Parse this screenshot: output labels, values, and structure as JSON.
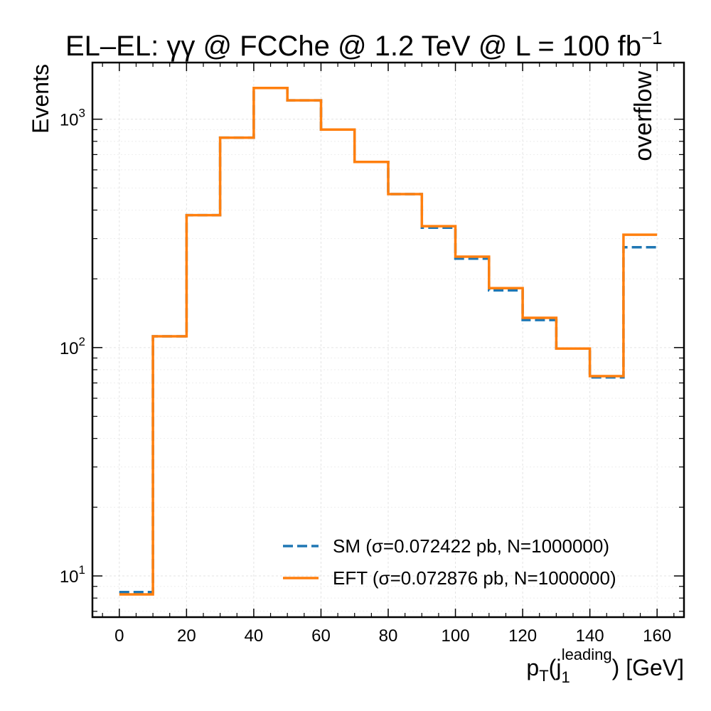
{
  "chart_data": {
    "type": "line",
    "title_main": "EL–EL: γγ @ FCChe @ 1.2 TeV @ L = 100 fb",
    "title_sup": "−1",
    "xlabel_main": "p",
    "xlabel_sub": "T",
    "xlabel_paren_open": "(j",
    "xlabel_j_sub": "1",
    "xlabel_j_sup": "leading",
    "xlabel_tail": ") [GeV]",
    "ylabel": "Events",
    "annotation": "overflow",
    "x_scale": "linear",
    "y_scale": "log",
    "xlim": [
      -8,
      168
    ],
    "ylim": [
      6.6,
      1770
    ],
    "x_ticks": [
      0,
      20,
      40,
      60,
      80,
      100,
      120,
      140,
      160
    ],
    "x_tick_labels": [
      "0",
      "20",
      "40",
      "60",
      "80",
      "100",
      "120",
      "140",
      "160"
    ],
    "y_ticks": [
      10,
      100,
      1000
    ],
    "y_tick_base": "10",
    "y_tick_exps": [
      "1",
      "2",
      "3"
    ],
    "grid": true,
    "legend_position": "lower-right",
    "bin_edges": [
      0,
      10,
      20,
      30,
      40,
      50,
      60,
      70,
      80,
      90,
      100,
      110,
      120,
      130,
      140,
      150,
      160
    ],
    "series": [
      {
        "name": "SM (σ=0.072422 pb, N=1000000)",
        "style": "dashed",
        "color": "#1f77b4",
        "values": [
          8.5,
          112,
          380,
          830,
          1370,
          1210,
          900,
          650,
          470,
          335,
          245,
          178,
          132,
          99,
          74,
          275
        ]
      },
      {
        "name": "EFT (σ=0.072876 pb, N=1000000)",
        "style": "solid",
        "color": "#ff7f0e",
        "values": [
          8.3,
          112,
          380,
          830,
          1370,
          1210,
          900,
          650,
          470,
          340,
          250,
          182,
          135,
          99,
          75,
          312
        ]
      }
    ]
  }
}
